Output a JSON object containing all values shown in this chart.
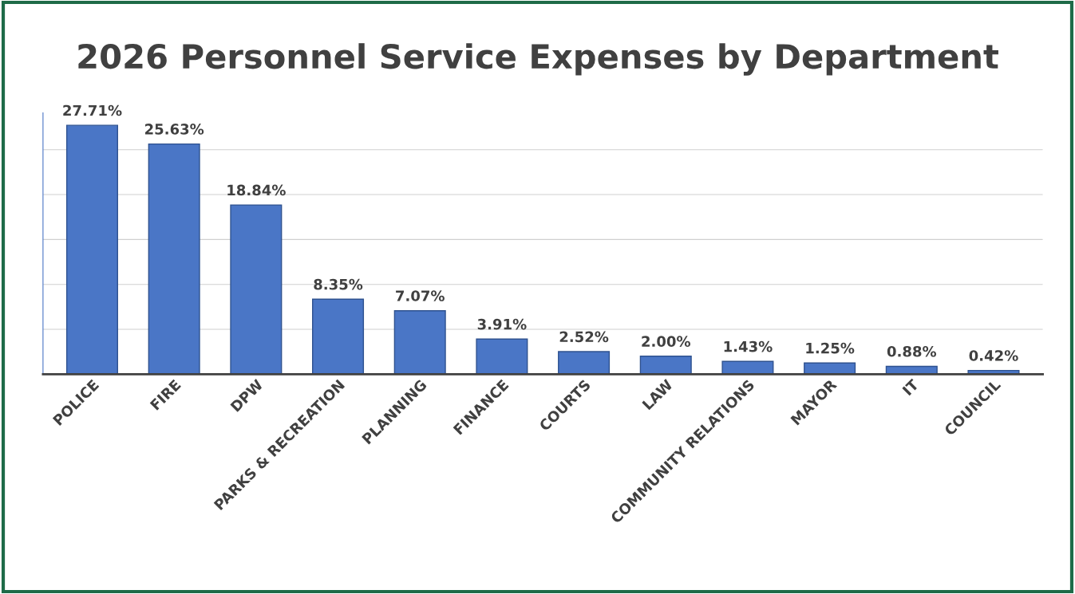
{
  "chart_data": {
    "type": "bar",
    "title": "2026 Personnel Service Expenses by Department",
    "categories": [
      "POLICE",
      "FIRE",
      "DPW",
      "PARKS & RECREATION",
      "PLANNING",
      "FINANCE",
      "COURTS",
      "LAW",
      "COMMUNITY RELATIONS",
      "MAYOR",
      "IT",
      "COUNCIL"
    ],
    "values": [
      27.71,
      25.63,
      18.84,
      8.35,
      7.07,
      3.91,
      2.52,
      2.0,
      1.43,
      1.25,
      0.88,
      0.42
    ],
    "value_labels": [
      "27.71%",
      "25.63%",
      "18.84%",
      "8.35%",
      "7.07%",
      "3.91%",
      "2.52%",
      "2.00%",
      "1.43%",
      "1.25%",
      "0.88%",
      "0.42%"
    ],
    "color": "#4a76c6",
    "grid": "y",
    "tick_labels": "x"
  }
}
